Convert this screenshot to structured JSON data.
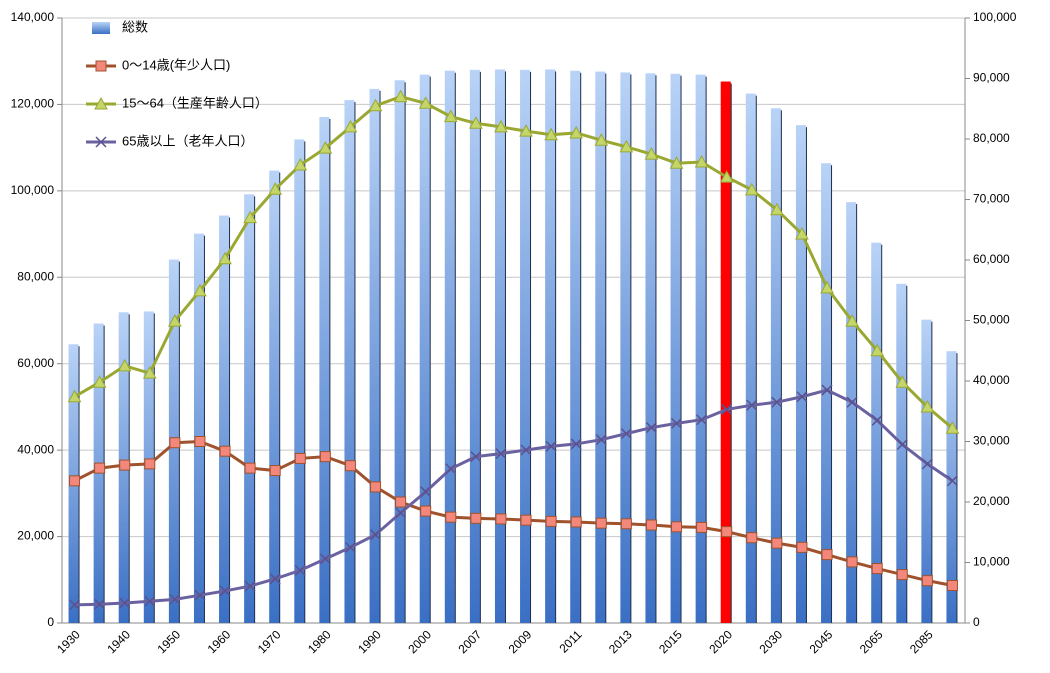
{
  "chart_data": {
    "type": "bar_line",
    "categories": [
      "1930",
      null,
      "1940",
      null,
      "1950",
      null,
      "1960",
      null,
      "1970",
      null,
      "1980",
      null,
      "1990",
      null,
      "2000",
      null,
      "2007",
      null,
      "2009",
      null,
      "2011",
      null,
      "2013",
      null,
      "2015",
      null,
      "2020",
      null,
      "2030",
      null,
      "2045",
      null,
      "2065",
      null,
      "2085",
      null
    ],
    "series": [
      {
        "name": "総数",
        "type": "bar",
        "axis": "y",
        "color": "#5b8fd9",
        "highlight_index": 26,
        "highlight_color": "#ff0000",
        "values": [
          64.5,
          69.3,
          71.9,
          72.1,
          84.1,
          90.1,
          94.3,
          99.2,
          104.7,
          111.9,
          117.1,
          121.0,
          123.6,
          125.6,
          126.9,
          127.8,
          128.0,
          128.1,
          128.0,
          128.1,
          127.8,
          127.6,
          127.4,
          127.2,
          127.1,
          126.9,
          125.3,
          122.5,
          119.1,
          115.2,
          106.4,
          97.4,
          88.0,
          78.5,
          70.2,
          62.9
        ]
      },
      {
        "name": "0～14歳(年少人口)",
        "type": "line",
        "axis": "y2",
        "color": "#a0522d",
        "marker": "square",
        "marker_color": "#f4877b",
        "values": [
          23.5,
          25.6,
          26.1,
          26.3,
          29.8,
          30.0,
          28.4,
          25.6,
          25.2,
          27.2,
          27.5,
          26.0,
          22.5,
          20.0,
          18.5,
          17.5,
          17.3,
          17.2,
          17.0,
          16.8,
          16.7,
          16.5,
          16.4,
          16.2,
          15.9,
          15.8,
          15.1,
          14.1,
          13.2,
          12.5,
          11.3,
          10.1,
          9.0,
          8.0,
          7.0,
          6.2
        ]
      },
      {
        "name": "15～64（生産年齢人口）",
        "type": "line",
        "axis": "y2",
        "color": "#9aa832",
        "marker": "triangle",
        "marker_color": "#c4d66a",
        "values": [
          37.4,
          39.8,
          42.5,
          41.3,
          49.9,
          54.9,
          60.2,
          67.0,
          71.7,
          75.7,
          78.5,
          82.0,
          85.5,
          87.0,
          85.9,
          83.7,
          82.6,
          82.0,
          81.3,
          80.7,
          81.0,
          79.8,
          78.7,
          77.5,
          76.0,
          76.2,
          73.7,
          71.6,
          68.3,
          64.3,
          55.4,
          49.9,
          45.0,
          39.8,
          35.7,
          32.2
        ]
      },
      {
        "name": "65歳以上（老年人口）",
        "type": "line",
        "axis": "y2",
        "color": "#6a62a0",
        "marker": "x",
        "marker_color": "#5a5290",
        "values": [
          3.0,
          3.1,
          3.3,
          3.6,
          3.9,
          4.6,
          5.3,
          6.1,
          7.3,
          8.7,
          10.6,
          12.5,
          14.6,
          18.2,
          21.7,
          25.5,
          27.5,
          28.0,
          28.6,
          29.2,
          29.6,
          30.3,
          31.3,
          32.3,
          33.0,
          33.6,
          35.3,
          36.0,
          36.5,
          37.4,
          38.5,
          36.5,
          33.5,
          29.5,
          26.3,
          23.5
        ]
      }
    ],
    "ylim": [
      0,
      140
    ],
    "yticks": [
      {
        "value": 0,
        "label": "0"
      },
      {
        "value": 20,
        "label": "20,000"
      },
      {
        "value": 40,
        "label": "40,000"
      },
      {
        "value": 60,
        "label": "60,000"
      },
      {
        "value": 80,
        "label": "80,000"
      },
      {
        "value": 100,
        "label": "100,000"
      },
      {
        "value": 120,
        "label": "120,000"
      },
      {
        "value": 140,
        "label": "140,000"
      }
    ],
    "y2lim": [
      0,
      100
    ],
    "y2ticks": [
      {
        "value": 0,
        "label": "0"
      },
      {
        "value": 10,
        "label": "10,000"
      },
      {
        "value": 20,
        "label": "20,000"
      },
      {
        "value": 30,
        "label": "30,000"
      },
      {
        "value": 40,
        "label": "40,000"
      },
      {
        "value": 50,
        "label": "50,000"
      },
      {
        "value": 60,
        "label": "60,000"
      },
      {
        "value": 70,
        "label": "70,000"
      },
      {
        "value": 80,
        "label": "80,000"
      },
      {
        "value": 90,
        "label": "90,000"
      },
      {
        "value": 100,
        "label": "100,000"
      }
    ],
    "grid": true,
    "legend": "top-left"
  }
}
